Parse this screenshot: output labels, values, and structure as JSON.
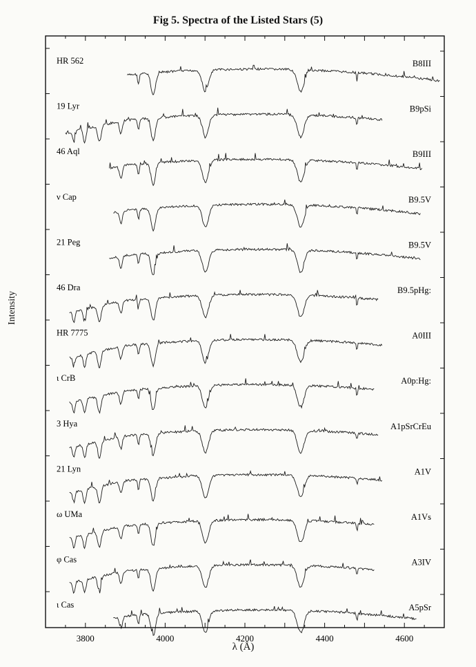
{
  "chart_data": {
    "type": "line",
    "title": "Fig 5. Spectra of the Listed Stars (5)",
    "xlabel": "λ (Å)",
    "ylabel": "Intensity",
    "xlim": [
      3700,
      4700
    ],
    "xticks": [
      3800,
      4000,
      4200,
      4400,
      4600
    ],
    "absorption_lines_angstrom": [
      3889,
      3933,
      3970,
      4101,
      4340,
      4481
    ],
    "series": [
      {
        "name": "HR 562",
        "type_label": "B8III",
        "x_start": 3905,
        "x_end": 4690
      },
      {
        "name": "19 Lyr",
        "type_label": "B9pSi",
        "x_start": 3750,
        "x_end": 4545
      },
      {
        "name": "46 Aql",
        "type_label": "B9III",
        "x_start": 3860,
        "x_end": 4645
      },
      {
        "name": "ν Cap",
        "type_label": "B9.5V",
        "x_start": 3870,
        "x_end": 4640
      },
      {
        "name": "21 Peg",
        "type_label": "B9.5V",
        "x_start": 3860,
        "x_end": 4640
      },
      {
        "name": "46 Dra",
        "type_label": "B9.5pHg:",
        "x_start": 3760,
        "x_end": 4535
      },
      {
        "name": "HR 7775",
        "type_label": "A0III",
        "x_start": 3760,
        "x_end": 4545
      },
      {
        "name": "ι CrB",
        "type_label": "A0p:Hg:",
        "x_start": 3760,
        "x_end": 4525
      },
      {
        "name": "3 Hya",
        "type_label": "A1pSrCrEu",
        "x_start": 3760,
        "x_end": 4535
      },
      {
        "name": "21 Lyn",
        "type_label": "A1V",
        "x_start": 3760,
        "x_end": 4545
      },
      {
        "name": "ω UMa",
        "type_label": "A1Vs",
        "x_start": 3760,
        "x_end": 4525
      },
      {
        "name": "φ Cas",
        "type_label": "A3IV",
        "x_start": 3760,
        "x_end": 4525
      },
      {
        "name": "ι Cas",
        "type_label": "A5pSr",
        "x_start": 3870,
        "x_end": 4630
      }
    ]
  }
}
